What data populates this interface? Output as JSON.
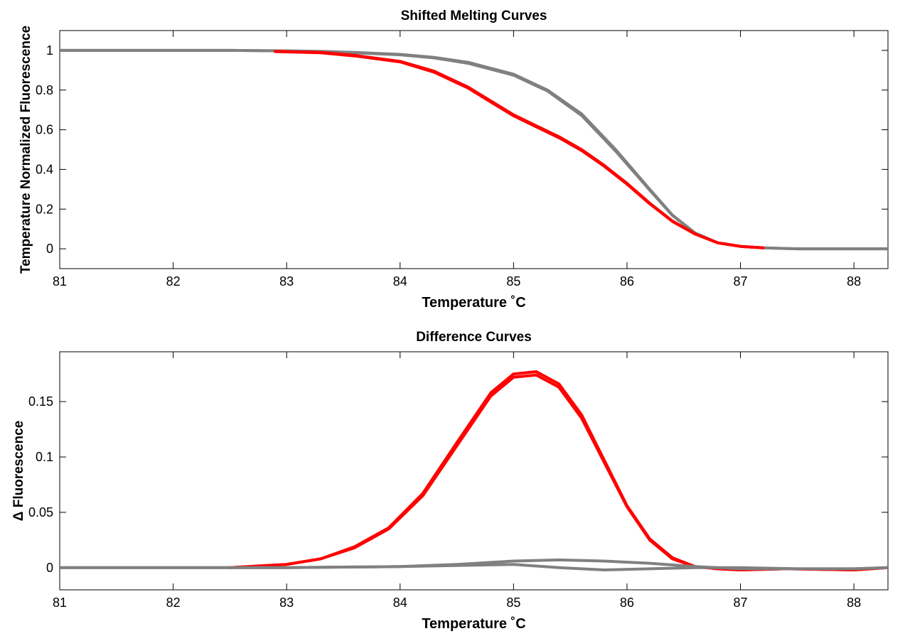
{
  "chart_data": [
    {
      "type": "line",
      "title": "Shifted Melting Curves",
      "xlabel": "Temperature ˚C",
      "ylabel": "Temperature Normalized Fluorescence",
      "xlim": [
        81,
        88.3
      ],
      "ylim": [
        -0.1,
        1.1
      ],
      "xticks": [
        81,
        82,
        83,
        84,
        85,
        86,
        87,
        88
      ],
      "yticks": [
        0,
        0.2,
        0.4,
        0.6,
        0.8,
        1
      ],
      "ytick_labels": [
        "0",
        "0.2",
        "0.4",
        "0.6",
        "0.8",
        "1"
      ],
      "grid": false,
      "legend": "none",
      "series": [
        {
          "color": "#808080",
          "x": [
            81,
            82,
            82.5,
            83,
            83.3,
            83.6,
            84,
            84.3,
            84.6,
            85,
            85.3,
            85.6,
            85.9,
            86.2,
            86.4,
            86.6,
            86.8,
            87,
            87.2,
            87.5,
            88,
            88.3
          ],
          "y": [
            1.0,
            1.0,
            1.0,
            0.998,
            0.995,
            0.99,
            0.98,
            0.965,
            0.94,
            0.88,
            0.8,
            0.68,
            0.5,
            0.3,
            0.17,
            0.08,
            0.03,
            0.012,
            0.005,
            0.0,
            0.0,
            0.0
          ]
        },
        {
          "color": "#808080",
          "x": [
            81,
            82,
            82.5,
            83,
            83.3,
            83.6,
            84,
            84.3,
            84.6,
            85,
            85.3,
            85.6,
            85.9,
            86.2,
            86.4,
            86.6,
            86.8,
            87,
            87.2,
            87.5,
            88,
            88.3
          ],
          "y": [
            1.0,
            1.0,
            1.0,
            0.997,
            0.994,
            0.988,
            0.978,
            0.962,
            0.935,
            0.875,
            0.795,
            0.672,
            0.492,
            0.296,
            0.168,
            0.079,
            0.03,
            0.012,
            0.005,
            0.0,
            0.0,
            0.0
          ]
        },
        {
          "color": "#ff0000",
          "x": [
            82.9,
            83.3,
            83.6,
            84,
            84.3,
            84.6,
            84.8,
            85,
            85.2,
            85.4,
            85.6,
            85.8,
            86,
            86.2,
            86.4,
            86.6,
            86.8,
            87,
            87.2
          ],
          "y": [
            0.995,
            0.99,
            0.975,
            0.945,
            0.895,
            0.815,
            0.745,
            0.675,
            0.62,
            0.565,
            0.5,
            0.42,
            0.33,
            0.23,
            0.14,
            0.075,
            0.03,
            0.012,
            0.005
          ]
        },
        {
          "color": "#ff0000",
          "x": [
            82.9,
            83.3,
            83.6,
            84,
            84.3,
            84.6,
            84.8,
            85,
            85.2,
            85.4,
            85.6,
            85.8,
            86,
            86.2,
            86.4,
            86.6,
            86.8,
            87,
            87.2
          ],
          "y": [
            0.994,
            0.988,
            0.972,
            0.942,
            0.89,
            0.81,
            0.74,
            0.67,
            0.615,
            0.56,
            0.495,
            0.416,
            0.326,
            0.227,
            0.138,
            0.074,
            0.03,
            0.012,
            0.005
          ]
        }
      ]
    },
    {
      "type": "line",
      "title": "Difference Curves",
      "xlabel": "Temperature ˚C",
      "ylabel": "Δ Fluorescence",
      "xlim": [
        81,
        88.3
      ],
      "ylim": [
        -0.02,
        0.195
      ],
      "xticks": [
        81,
        82,
        83,
        84,
        85,
        86,
        87,
        88
      ],
      "yticks": [
        0,
        0.05,
        0.1,
        0.15
      ],
      "ytick_labels": [
        "0",
        "0.05",
        "0.1",
        "0.15"
      ],
      "grid": false,
      "legend": "none",
      "series": [
        {
          "color": "#ff0000",
          "x": [
            82.5,
            83,
            83.3,
            83.6,
            83.9,
            84.2,
            84.5,
            84.8,
            85,
            85.2,
            85.4,
            85.6,
            85.8,
            86,
            86.2,
            86.4,
            86.6,
            86.8,
            87,
            87.4,
            88,
            88.3
          ],
          "y": [
            0.0,
            0.003,
            0.008,
            0.018,
            0.035,
            0.065,
            0.11,
            0.155,
            0.172,
            0.174,
            0.163,
            0.135,
            0.095,
            0.055,
            0.025,
            0.008,
            0.001,
            -0.001,
            -0.002,
            -0.001,
            -0.002,
            0.0
          ]
        },
        {
          "color": "#ff0000",
          "x": [
            82.5,
            83,
            83.3,
            83.6,
            83.9,
            84.2,
            84.5,
            84.8,
            85,
            85.2,
            85.4,
            85.6,
            85.8,
            86,
            86.2,
            86.4,
            86.6,
            86.8,
            87,
            87.4,
            88,
            88.3
          ],
          "y": [
            0.0,
            0.003,
            0.008,
            0.019,
            0.036,
            0.067,
            0.113,
            0.158,
            0.175,
            0.177,
            0.166,
            0.138,
            0.097,
            0.056,
            0.026,
            0.009,
            0.001,
            -0.001,
            -0.002,
            -0.001,
            -0.002,
            0.0
          ]
        },
        {
          "color": "#808080",
          "x": [
            81,
            82,
            83,
            84,
            84.5,
            85,
            85.4,
            85.8,
            86.2,
            86.6,
            87,
            87.5,
            88,
            88.3
          ],
          "y": [
            0.0,
            0.0,
            0.0,
            0.001,
            0.003,
            0.006,
            0.007,
            0.006,
            0.004,
            0.001,
            -0.001,
            -0.001,
            -0.001,
            0.0
          ]
        },
        {
          "color": "#808080",
          "x": [
            81,
            82,
            83,
            84,
            84.5,
            85,
            85.4,
            85.8,
            86.2,
            86.6,
            87,
            87.5,
            88,
            88.3
          ],
          "y": [
            0.0,
            0.0,
            0.0,
            0.001,
            0.002,
            0.003,
            0.0,
            -0.002,
            -0.001,
            0.0,
            0.0,
            -0.001,
            -0.001,
            0.0
          ]
        }
      ]
    }
  ]
}
